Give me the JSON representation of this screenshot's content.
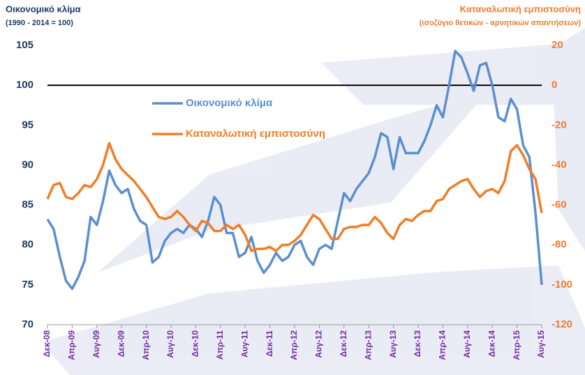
{
  "chart_data": {
    "type": "line",
    "y_title": "Οικονομικό κλίμα",
    "y_subtitle": "(1990 - 2014 = 100)",
    "y2_title": "Καταναλωτική εμπιστοσύνη",
    "y2_subtitle": "(ισοζύγιο θετικών - αρνητικών απαντήσεων)",
    "categories": [
      "Δεκ-08",
      null,
      null,
      null,
      "Απρ-09",
      null,
      null,
      null,
      "Αυγ-09",
      null,
      null,
      null,
      "Δεκ-09",
      null,
      null,
      null,
      "Απρ-10",
      null,
      null,
      null,
      "Αυγ-10",
      null,
      null,
      null,
      "Δεκ-10",
      null,
      null,
      null,
      "Απρ-11",
      null,
      null,
      null,
      "Αυγ-11",
      null,
      null,
      null,
      "Δεκ-11",
      null,
      null,
      null,
      "Απρ-12",
      null,
      null,
      null,
      "Αυγ-12",
      null,
      null,
      null,
      "Δεκ-12",
      null,
      null,
      null,
      "Απρ-13",
      null,
      null,
      null,
      "Αυγ-13",
      null,
      null,
      null,
      "Δεκ-13",
      null,
      null,
      null,
      "Απρ-14",
      null,
      null,
      null,
      "Αυγ-14",
      null,
      null,
      null,
      "Δεκ-14",
      null,
      null,
      null,
      "Απρ-15",
      null,
      null,
      null,
      "Αυγ-15"
    ],
    "series": [
      {
        "name": "Οικονομικό κλίμα",
        "color": "#5b8fd0",
        "values": [
          83.2,
          82,
          78.5,
          75.5,
          74.5,
          76,
          78,
          83.5,
          82.5,
          85.5,
          89.3,
          87.5,
          86.5,
          87,
          84.5,
          83,
          82.5,
          77.8,
          78.5,
          80.5,
          81.5,
          82,
          81.5,
          82.5,
          82,
          81,
          83,
          86,
          85,
          81.5,
          81.5,
          78.5,
          79,
          81,
          78,
          76.5,
          77.5,
          79,
          78,
          78.5,
          80,
          80.5,
          78.5,
          77.5,
          79.5,
          80,
          79.5,
          83,
          86.5,
          85.5,
          87,
          88,
          89,
          91,
          94,
          93.5,
          89.5,
          93.5,
          91.5,
          91.5,
          91.5,
          93,
          95,
          97.5,
          96,
          100,
          104.3,
          103.5,
          101.5,
          99.3,
          102.5,
          102.8,
          100,
          96,
          95.5,
          98.3,
          97,
          92.5,
          91,
          84,
          75
        ]
      },
      {
        "name": "Καταναλωτική εμπιστοσύνη",
        "color": "#f07e26",
        "axis": "y2",
        "values": [
          -57,
          -50,
          -49,
          -56,
          -57,
          -54,
          -50,
          -51,
          -47,
          -40,
          -29,
          -37,
          -42,
          -45,
          -48,
          -52,
          -56,
          -61,
          -66,
          -67,
          -66,
          -63,
          -66,
          -70,
          -73,
          -68,
          -69,
          -73,
          -73,
          -70,
          -72,
          -70,
          -75,
          -83,
          -82,
          -82,
          -81,
          -83,
          -80,
          -80,
          -78,
          -75,
          -70,
          -65,
          -67,
          -72,
          -77,
          -77,
          -72,
          -71,
          -71,
          -70,
          -70,
          -66,
          -69,
          -74,
          -77,
          -70,
          -67,
          -68,
          -65,
          -63,
          -63,
          -58,
          -57,
          -52,
          -50,
          -48,
          -47,
          -52,
          -56,
          -53,
          -52,
          -54,
          -48,
          -33,
          -30,
          -35,
          -42,
          -47,
          -64
        ]
      }
    ],
    "ylim": [
      70,
      105
    ],
    "yticks": [
      70,
      75,
      80,
      85,
      90,
      95,
      100,
      105
    ],
    "y2lim": [
      -120,
      20
    ],
    "y2ticks": [
      -120,
      -100,
      -80,
      -60,
      -40,
      -20,
      0,
      20
    ],
    "hline": 100,
    "grid": false
  }
}
